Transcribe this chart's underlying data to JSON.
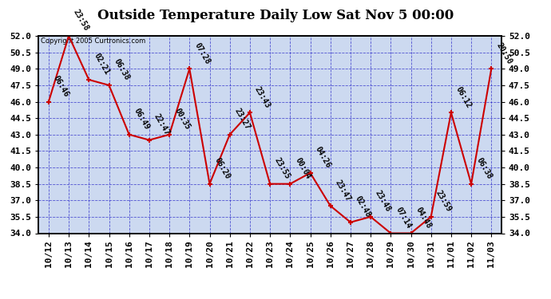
{
  "title": "Outside Temperature Daily Low Sat Nov 5 00:00",
  "copyright": "Copyright 2005 Curtronics.com",
  "x_labels": [
    "10/12",
    "10/13",
    "10/14",
    "10/15",
    "10/16",
    "10/17",
    "10/18",
    "10/19",
    "10/20",
    "10/21",
    "10/22",
    "10/23",
    "10/24",
    "10/25",
    "10/26",
    "10/27",
    "10/28",
    "10/29",
    "10/30",
    "10/31",
    "11/01",
    "11/02",
    "11/03"
  ],
  "y_values": [
    46.0,
    52.0,
    48.0,
    47.5,
    43.0,
    42.5,
    43.0,
    49.0,
    38.5,
    43.0,
    45.0,
    38.5,
    38.5,
    39.5,
    36.5,
    35.0,
    35.5,
    34.0,
    34.0,
    35.5,
    45.0,
    38.5,
    49.0
  ],
  "point_labels": [
    "06:46",
    "23:58",
    "02:21",
    "06:38",
    "06:49",
    "22:47",
    "00:35",
    "07:28",
    "06:20",
    "23:27",
    "23:43",
    "23:55",
    "00:04",
    "04:26",
    "23:47",
    "02:48",
    "23:48",
    "07:14",
    "04:48",
    "23:59",
    "06:12",
    "06:38",
    "20:50"
  ],
  "ylim_min": 34.0,
  "ylim_max": 52.0,
  "yticks": [
    34.0,
    35.5,
    37.0,
    38.5,
    40.0,
    41.5,
    43.0,
    44.5,
    46.0,
    47.5,
    49.0,
    50.5,
    52.0
  ],
  "line_color": "#cc0000",
  "marker_color": "#cc0000",
  "bg_color": "#ffffff",
  "plot_bg_color": "#ccd9f0",
  "grid_color": "#3333cc",
  "title_fontsize": 12,
  "label_fontsize": 8,
  "point_label_fontsize": 7
}
